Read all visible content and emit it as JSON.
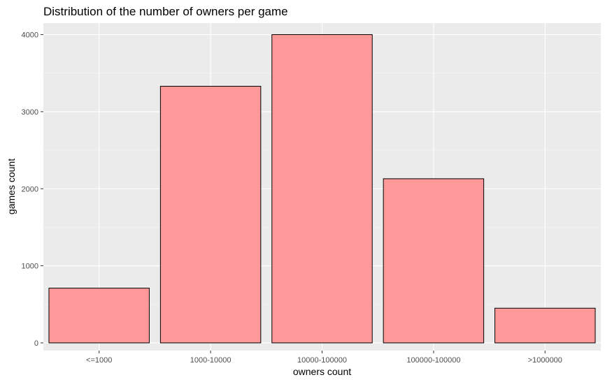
{
  "chart_data": {
    "type": "bar",
    "title": "Distribution of the number of owners per game",
    "xlabel": "owners count",
    "ylabel": "games count",
    "categories": [
      "<=1000",
      "1000-10000",
      "10000-100000",
      "100000-100000",
      ">1000000"
    ],
    "values": [
      710,
      3330,
      4000,
      2130,
      450
    ],
    "ylim": [
      -100,
      4150
    ],
    "yticks": [
      0,
      1000,
      2000,
      3000,
      4000
    ],
    "grid": true,
    "legend": "none",
    "colors": {
      "bar_fill": "#ff9999",
      "bar_stroke": "#000000",
      "panel_background": "#ebebeb",
      "grid_major": "#ffffff",
      "grid_minor": "#f5f5f5"
    }
  }
}
